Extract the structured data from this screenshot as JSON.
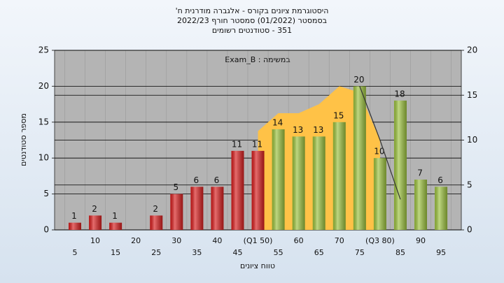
{
  "chart_data": {
    "type": "bar",
    "title": [
      "היסטוגרמת ציונים בקורס - אלגברה מודרנית ח'",
      "בסמסטר (01/2022) סמסטר חורף 2022/23",
      "351 - סטודנטים רשומים"
    ],
    "annotation": "במשימה : Exam_B",
    "y_label": "מספר סטודנטים",
    "x_label": "טווח ציונים",
    "categories": [
      "5",
      "10",
      "15",
      "20",
      "25",
      "30",
      "35",
      "40",
      "45",
      "(Q1 50)",
      "55",
      "60",
      "65",
      "70",
      "75",
      "(Q3 80)",
      "85",
      "90",
      "95"
    ],
    "values": [
      1,
      2,
      1,
      null,
      2,
      5,
      6,
      6,
      11,
      11,
      14,
      13,
      13,
      15,
      20,
      10,
      18,
      7,
      6
    ],
    "colors": [
      "#d81e1e",
      "#d81e1e",
      "#d81e1e",
      "#d81e1e",
      "#d81e1e",
      "#d81e1e",
      "#d81e1e",
      "#d81e1e",
      "#d81e1e",
      "#d81e1e",
      "#9cc23e",
      "#9cc23e",
      "#9cc23e",
      "#9cc23e",
      "#9cc23e",
      "#9cc23e",
      "#9cc23e",
      "#9cc23e",
      "#9cc23e"
    ],
    "area": {
      "color": "#ffc247",
      "axis": "y2",
      "values": [
        null,
        null,
        null,
        null,
        null,
        null,
        null,
        null,
        null,
        11,
        13,
        13,
        14,
        16,
        15.3,
        10,
        null,
        null,
        null
      ]
    },
    "line": {
      "color": "#333333",
      "axis": "y2",
      "values": [
        null,
        null,
        null,
        null,
        null,
        null,
        null,
        null,
        null,
        null,
        null,
        null,
        null,
        null,
        16,
        10,
        3.4,
        null,
        null
      ]
    },
    "ylim": [
      0,
      25
    ],
    "yticks": [
      0,
      5,
      10,
      15,
      20,
      25
    ],
    "y2lim": [
      0,
      20
    ],
    "y2ticks": [
      0,
      5,
      10,
      15,
      20
    ],
    "grid": true
  }
}
